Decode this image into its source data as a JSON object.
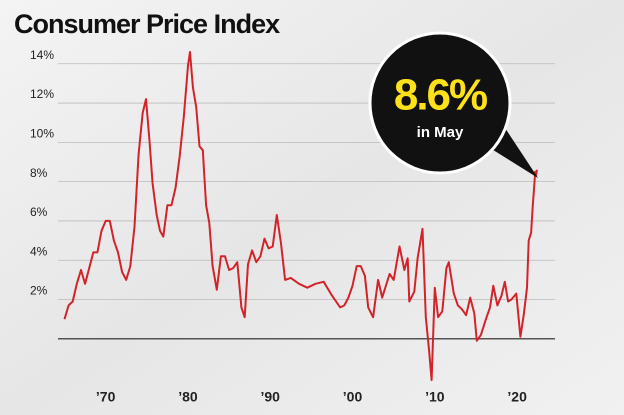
{
  "chart_data": {
    "type": "line",
    "title": "Consumer Price Index",
    "annotation": {
      "value_text": "8.6%",
      "note": "in May"
    },
    "xlim": [
      1960.2,
      2024.6
    ],
    "ylim": [
      -2.3,
      14.7
    ],
    "xticks": [
      {
        "value": 1970,
        "label": "’70"
      },
      {
        "value": 1980,
        "label": "’80"
      },
      {
        "value": 1990,
        "label": "’90"
      },
      {
        "value": 2000,
        "label": "’00"
      },
      {
        "value": 2010,
        "label": "’10"
      },
      {
        "value": 2020,
        "label": "’20"
      }
    ],
    "yticks": [
      {
        "value": 2,
        "label": "2%"
      },
      {
        "value": 4,
        "label": "4%"
      },
      {
        "value": 6,
        "label": "6%"
      },
      {
        "value": 8,
        "label": "8%"
      },
      {
        "value": 10,
        "label": "10%"
      },
      {
        "value": 12,
        "label": "12%"
      },
      {
        "value": 14,
        "label": "14%"
      }
    ],
    "grid": true,
    "color": "#d2232a",
    "x": [
      1965.0,
      1965.5,
      1966.0,
      1966.5,
      1967.0,
      1967.5,
      1968.0,
      1968.5,
      1969.0,
      1969.5,
      1970.0,
      1970.5,
      1971.0,
      1971.5,
      1972.0,
      1972.5,
      1973.0,
      1973.5,
      1974.0,
      1974.5,
      1974.9,
      1975.3,
      1975.7,
      1976.2,
      1976.6,
      1977.0,
      1977.5,
      1978.0,
      1978.5,
      1979.0,
      1979.5,
      1980.0,
      1980.25,
      1980.6,
      1981.0,
      1981.4,
      1981.8,
      1982.2,
      1982.6,
      1983.0,
      1983.5,
      1984.0,
      1984.5,
      1985.0,
      1985.5,
      1986.0,
      1986.5,
      1986.9,
      1987.3,
      1987.8,
      1988.3,
      1988.8,
      1989.3,
      1989.8,
      1990.3,
      1990.8,
      1991.3,
      1991.8,
      1992.5,
      1993.5,
      1994.5,
      1995.5,
      1996.5,
      1997.5,
      1998.5,
      1999.0,
      1999.5,
      2000.0,
      2000.5,
      2001.0,
      2001.5,
      2001.9,
      2002.5,
      2003.1,
      2003.6,
      2004.5,
      2005.0,
      2005.7,
      2006.3,
      2006.7,
      2006.9,
      2007.5,
      2007.9,
      2008.5,
      2008.9,
      2009.3,
      2009.6,
      2010.0,
      2010.4,
      2010.9,
      2011.4,
      2011.7,
      2012.3,
      2012.8,
      2013.3,
      2013.8,
      2014.3,
      2014.8,
      2015.1,
      2015.6,
      2016.2,
      2016.7,
      2017.1,
      2017.6,
      2018.1,
      2018.5,
      2018.9,
      2019.3,
      2019.9,
      2020.4,
      2020.8,
      2021.2,
      2021.4,
      2021.7,
      2021.9,
      2022.1,
      2022.2,
      2022.3,
      2022.4
    ],
    "values": [
      1.0,
      1.7,
      1.9,
      2.8,
      3.5,
      2.8,
      3.6,
      4.4,
      4.4,
      5.5,
      6.0,
      6.0,
      5.0,
      4.4,
      3.4,
      3.0,
      3.7,
      5.7,
      9.4,
      11.5,
      12.2,
      10.2,
      7.9,
      6.3,
      5.5,
      5.2,
      6.8,
      6.8,
      7.7,
      9.3,
      11.3,
      13.9,
      14.6,
      12.8,
      11.8,
      9.8,
      9.6,
      6.8,
      5.9,
      3.7,
      2.5,
      4.2,
      4.2,
      3.5,
      3.6,
      3.9,
      1.6,
      1.1,
      3.8,
      4.5,
      3.9,
      4.2,
      5.1,
      4.6,
      4.7,
      6.3,
      4.9,
      3.0,
      3.1,
      2.8,
      2.6,
      2.8,
      2.9,
      2.2,
      1.6,
      1.7,
      2.1,
      2.7,
      3.7,
      3.7,
      3.2,
      1.6,
      1.1,
      3.0,
      2.1,
      3.3,
      3.0,
      4.7,
      3.5,
      4.1,
      1.9,
      2.4,
      4.1,
      5.6,
      1.1,
      -0.6,
      -2.1,
      2.6,
      1.1,
      1.4,
      3.6,
      3.9,
      2.3,
      1.7,
      1.5,
      1.2,
      2.1,
      1.3,
      -0.1,
      0.2,
      1.0,
      1.6,
      2.7,
      1.7,
      2.2,
      2.9,
      1.9,
      2.0,
      2.3,
      0.1,
      1.2,
      2.6,
      5.0,
      5.4,
      6.8,
      7.9,
      8.5,
      8.3,
      8.6
    ]
  }
}
